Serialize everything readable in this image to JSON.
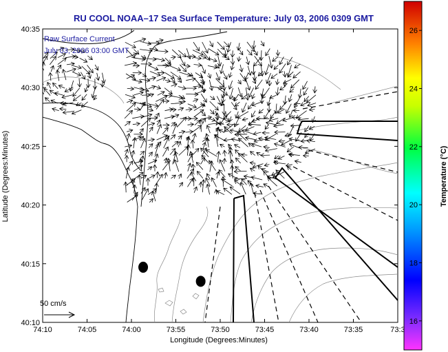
{
  "chart_data": {
    "type": "vector-field-map",
    "title": "RU COOL  NOAA–17  Sea Surface Temperature:  July 03, 2006 0309 GMT",
    "xlabel": "Longitude (Degrees:Minutes)",
    "ylabel": "Latitude (Degrees:Minutes)",
    "x_ticks": [
      "74:10",
      "74:05",
      "74:00",
      "73:55",
      "73:50",
      "73:45",
      "73:40",
      "73:35",
      "73:3"
    ],
    "y_ticks": [
      "40:35",
      "40:30",
      "40:25",
      "40:20",
      "40:15",
      "40:10"
    ],
    "xlim_min": [
      -74.1667,
      -73.5
    ],
    "ylim_min": [
      40.1667,
      40.5833
    ],
    "annotations": [
      "Raw Surface Current",
      "July 03, 2006 03:00 GMT"
    ],
    "scale_label": "50 cm/s",
    "colorbar": {
      "label": "Temperature (°C)",
      "ticks": [
        "26",
        "24",
        "22",
        "20",
        "18",
        "16"
      ],
      "range": [
        15,
        27
      ],
      "colormap": "jet"
    },
    "current_field_origin": [
      -73.833,
      40.45
    ],
    "stations": [
      {
        "lon": -73.978,
        "lat": 40.245
      },
      {
        "lon": -73.87,
        "lat": 40.225
      }
    ]
  }
}
